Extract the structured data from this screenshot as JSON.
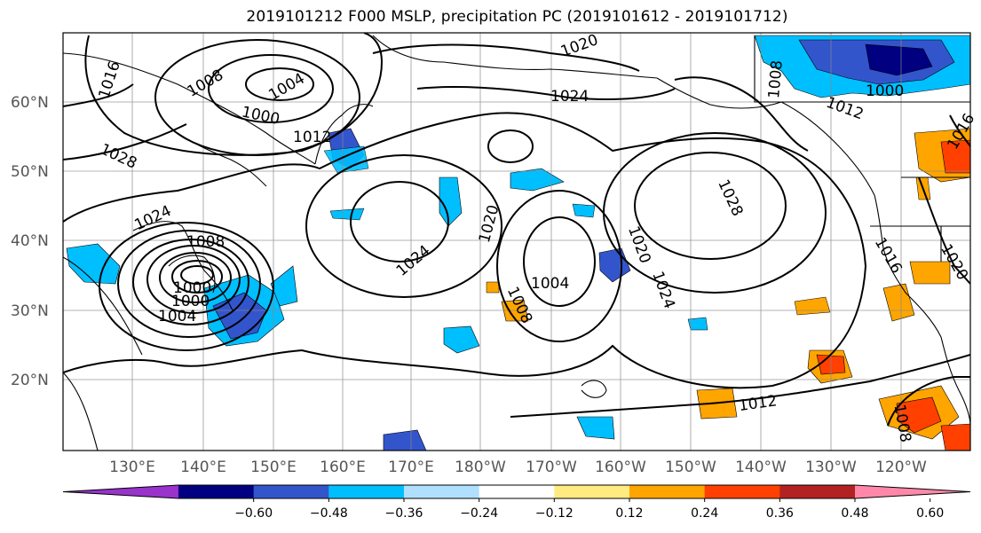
{
  "title": "2019101212 F000 MSLP, precipitation PC (2019101612 - 2019101712)",
  "lat_labels": [
    "60°N",
    "50°N",
    "40°N",
    "30°N",
    "20°N"
  ],
  "lon_labels": [
    "130°E",
    "140°E",
    "150°E",
    "160°E",
    "170°E",
    "180°W",
    "170°W",
    "160°W",
    "150°W",
    "140°W",
    "130°W",
    "120°W"
  ],
  "contour_labels": [
    "1016",
    "1008",
    "1004",
    "1000",
    "1012",
    "1028",
    "1024",
    "1008",
    "1000",
    "1004",
    "1000",
    "1024",
    "1020",
    "1020",
    "1024",
    "1028",
    "1020",
    "1024",
    "1008",
    "1004",
    "1012",
    "1012",
    "1000",
    "1008",
    "1016",
    "1016",
    "1020",
    "1008"
  ],
  "colorbar": {
    "ticks": [
      "−0.60",
      "−0.48",
      "−0.36",
      "−0.24",
      "−0.12",
      "0.12",
      "0.24",
      "0.36",
      "0.48",
      "0.60"
    ],
    "colors": [
      "#9933cc",
      "#000080",
      "#3355cc",
      "#00bfff",
      "#b0e0ff",
      "#ffffff",
      "#ffeb80",
      "#ffa500",
      "#ff4000",
      "#b22222",
      "#ff88aa"
    ]
  },
  "fill_colors": {
    "blue": "#00bfff",
    "light_blue": "#b0e0ff",
    "dark_blue": "#3355cc",
    "orange": "#ffa500",
    "red": "#ff4000",
    "yellow": "#ffeb80"
  }
}
